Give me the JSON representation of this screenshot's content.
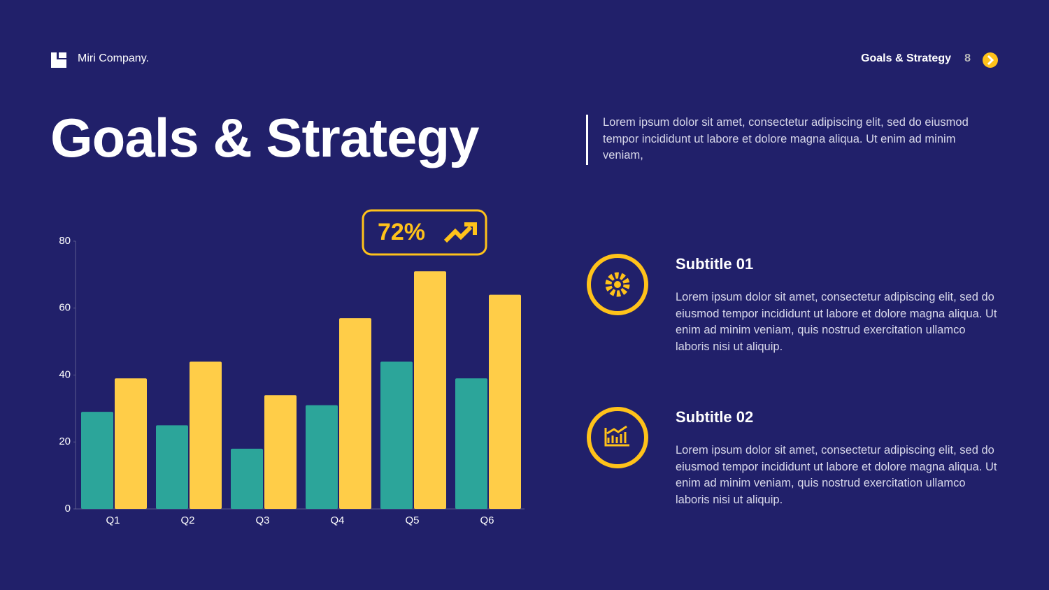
{
  "header": {
    "brand": "Miri Company.",
    "section": "Goals & Strategy",
    "page": "8"
  },
  "title": "Goals & Strategy",
  "intro": "Lorem ipsum dolor sit amet, consectetur adipiscing elit, sed do eiusmod tempor incididunt ut labore et dolore magna aliqua. Ut enim ad minim veniam,",
  "chart_data": {
    "type": "bar",
    "annotation": "72%",
    "categories": [
      "Q1",
      "Q2",
      "Q3",
      "Q4",
      "Q5",
      "Q6"
    ],
    "series": [
      {
        "color": "#2ca59a",
        "values": [
          29,
          25,
          18,
          31,
          44,
          39
        ]
      },
      {
        "color": "#ffcd48",
        "values": [
          39,
          44,
          34,
          57,
          71,
          64
        ]
      }
    ],
    "ylim": [
      0,
      80
    ],
    "yticks": [
      0,
      20,
      40,
      60,
      80
    ]
  },
  "items": [
    {
      "title": "Subtitle 01",
      "text": "Lorem ipsum dolor sit amet, consectetur adipiscing elit, sed do eiusmod tempor incididunt ut labore et dolore magna aliqua. Ut enim ad minim veniam, quis nostrud exercitation ullamco laboris nisi ut aliquip."
    },
    {
      "title": "Subtitle 02",
      "text": "Lorem ipsum dolor sit amet, consectetur adipiscing elit, sed do eiusmod tempor incididunt ut labore et dolore magna aliqua. Ut enim ad minim veniam, quis nostrud exercitation ullamco laboris nisi ut aliquip."
    }
  ]
}
